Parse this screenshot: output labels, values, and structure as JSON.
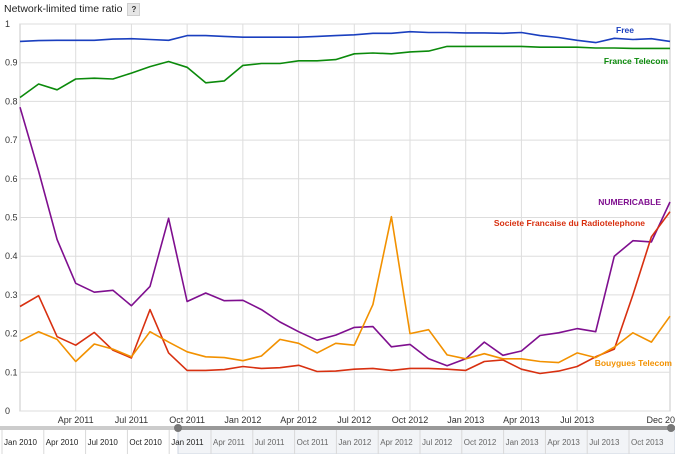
{
  "chart_data": {
    "type": "line",
    "title": "Network-limited time ratio",
    "help_glyph": "?",
    "xlabel": "",
    "ylabel": "",
    "ylim": [
      0,
      1
    ],
    "y_ticks": [
      "0",
      "0.1",
      "0.2",
      "0.3",
      "0.4",
      "0.5",
      "0.6",
      "0.7",
      "0.8",
      "0.9",
      "1"
    ],
    "x_tick_labels": [
      "Apr 2011",
      "Jul 2011",
      "Oct 2011",
      "Jan 2012",
      "Apr 2012",
      "Jul 2012",
      "Oct 2012",
      "Jan 2013",
      "Apr 2013",
      "Jul 2013",
      "Dec 20"
    ],
    "grid": true,
    "legend_placement": "inline labels, right",
    "x": [
      "2011-01",
      "2011-02",
      "2011-03",
      "2011-04",
      "2011-05",
      "2011-06",
      "2011-07",
      "2011-08",
      "2011-09",
      "2011-10",
      "2011-11",
      "2011-12",
      "2012-01",
      "2012-02",
      "2012-03",
      "2012-04",
      "2012-05",
      "2012-06",
      "2012-07",
      "2012-08",
      "2012-09",
      "2012-10",
      "2012-11",
      "2012-12",
      "2013-01",
      "2013-02",
      "2013-03",
      "2013-04",
      "2013-05",
      "2013-06",
      "2013-07",
      "2013-08",
      "2013-09",
      "2013-10",
      "2013-11",
      "2013-12"
    ],
    "series": [
      {
        "name": "Free",
        "color": "#1a3fbf",
        "values": [
          0.955,
          0.957,
          0.958,
          0.958,
          0.958,
          0.961,
          0.962,
          0.96,
          0.958,
          0.97,
          0.97,
          0.968,
          0.966,
          0.966,
          0.966,
          0.966,
          0.968,
          0.97,
          0.972,
          0.976,
          0.976,
          0.98,
          0.978,
          0.978,
          0.977,
          0.977,
          0.976,
          0.978,
          0.97,
          0.965,
          0.958,
          0.952,
          0.963,
          0.96,
          0.962,
          0.955
        ]
      },
      {
        "name": "France Telecom",
        "color": "#0b8a0b",
        "values": [
          0.81,
          0.845,
          0.83,
          0.858,
          0.86,
          0.858,
          0.873,
          0.89,
          0.903,
          0.888,
          0.848,
          0.853,
          0.893,
          0.898,
          0.898,
          0.905,
          0.905,
          0.908,
          0.923,
          0.925,
          0.923,
          0.928,
          0.93,
          0.942,
          0.942,
          0.942,
          0.942,
          0.942,
          0.94,
          0.94,
          0.94,
          0.938,
          0.938,
          0.937,
          0.937,
          0.937
        ]
      },
      {
        "name": "NUMERICABLE",
        "color": "#7f0f8f",
        "values": [
          0.785,
          0.62,
          0.443,
          0.33,
          0.307,
          0.312,
          0.272,
          0.322,
          0.498,
          0.283,
          0.305,
          0.285,
          0.286,
          0.262,
          0.23,
          0.205,
          0.183,
          0.196,
          0.216,
          0.218,
          0.166,
          0.172,
          0.135,
          0.117,
          0.135,
          0.178,
          0.144,
          0.155,
          0.195,
          0.202,
          0.213,
          0.205,
          0.4,
          0.44,
          0.437,
          0.54
        ]
      },
      {
        "name": "Societe Francaise du Radiotelephone",
        "color": "#d83010",
        "values": [
          0.27,
          0.298,
          0.192,
          0.17,
          0.203,
          0.157,
          0.137,
          0.262,
          0.15,
          0.105,
          0.105,
          0.107,
          0.115,
          0.11,
          0.112,
          0.118,
          0.102,
          0.103,
          0.108,
          0.11,
          0.105,
          0.11,
          0.11,
          0.108,
          0.105,
          0.128,
          0.132,
          0.108,
          0.097,
          0.103,
          0.115,
          0.14,
          0.16,
          0.3,
          0.45,
          0.515
        ]
      },
      {
        "name": "Bouygues Telecom",
        "color": "#f29100",
        "values": [
          0.18,
          0.205,
          0.185,
          0.128,
          0.173,
          0.16,
          0.14,
          0.205,
          0.178,
          0.153,
          0.14,
          0.138,
          0.13,
          0.142,
          0.185,
          0.175,
          0.15,
          0.175,
          0.17,
          0.275,
          0.502,
          0.2,
          0.21,
          0.145,
          0.135,
          0.148,
          0.135,
          0.135,
          0.128,
          0.125,
          0.15,
          0.138,
          0.165,
          0.202,
          0.178,
          0.245
        ]
      }
    ]
  },
  "navigator": {
    "labels": [
      "Jan 2010",
      "Apr 2010",
      "Jul 2010",
      "Oct 2010",
      "Jan 2011",
      "Apr 2011",
      "Jul 2011",
      "Oct 2011",
      "Jan 2012",
      "Apr 2012",
      "Jul 2012",
      "Oct 2012",
      "Jan 2013",
      "Apr 2013",
      "Jul 2013",
      "Oct 2013"
    ],
    "selected_start": "2011-01",
    "selected_end": "2013-12"
  }
}
